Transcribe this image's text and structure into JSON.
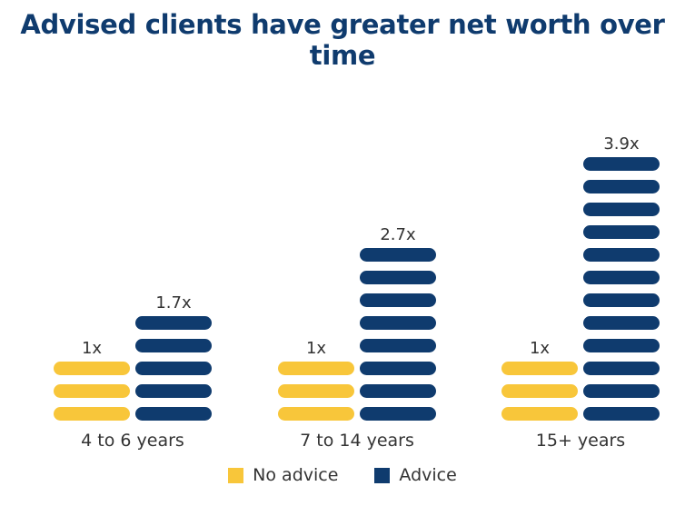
{
  "chart_data": {
    "type": "bar",
    "title": "Advised clients have greater net worth over time",
    "categories": [
      "4 to 6 years",
      "7 to 14 years",
      "15+ years"
    ],
    "series": [
      {
        "name": "No advice",
        "values": [
          1,
          1,
          1
        ],
        "labels": [
          "1x",
          "1x",
          "1x"
        ],
        "segments": [
          3,
          3,
          3
        ],
        "color": "#f8c63a"
      },
      {
        "name": "Advice",
        "values": [
          1.7,
          2.7,
          3.9
        ],
        "labels": [
          "1.7x",
          "2.7x",
          "3.9x"
        ],
        "segments": [
          5,
          8,
          12
        ],
        "color": "#0f3b6e"
      }
    ],
    "legend_position": "bottom",
    "grid": false
  }
}
